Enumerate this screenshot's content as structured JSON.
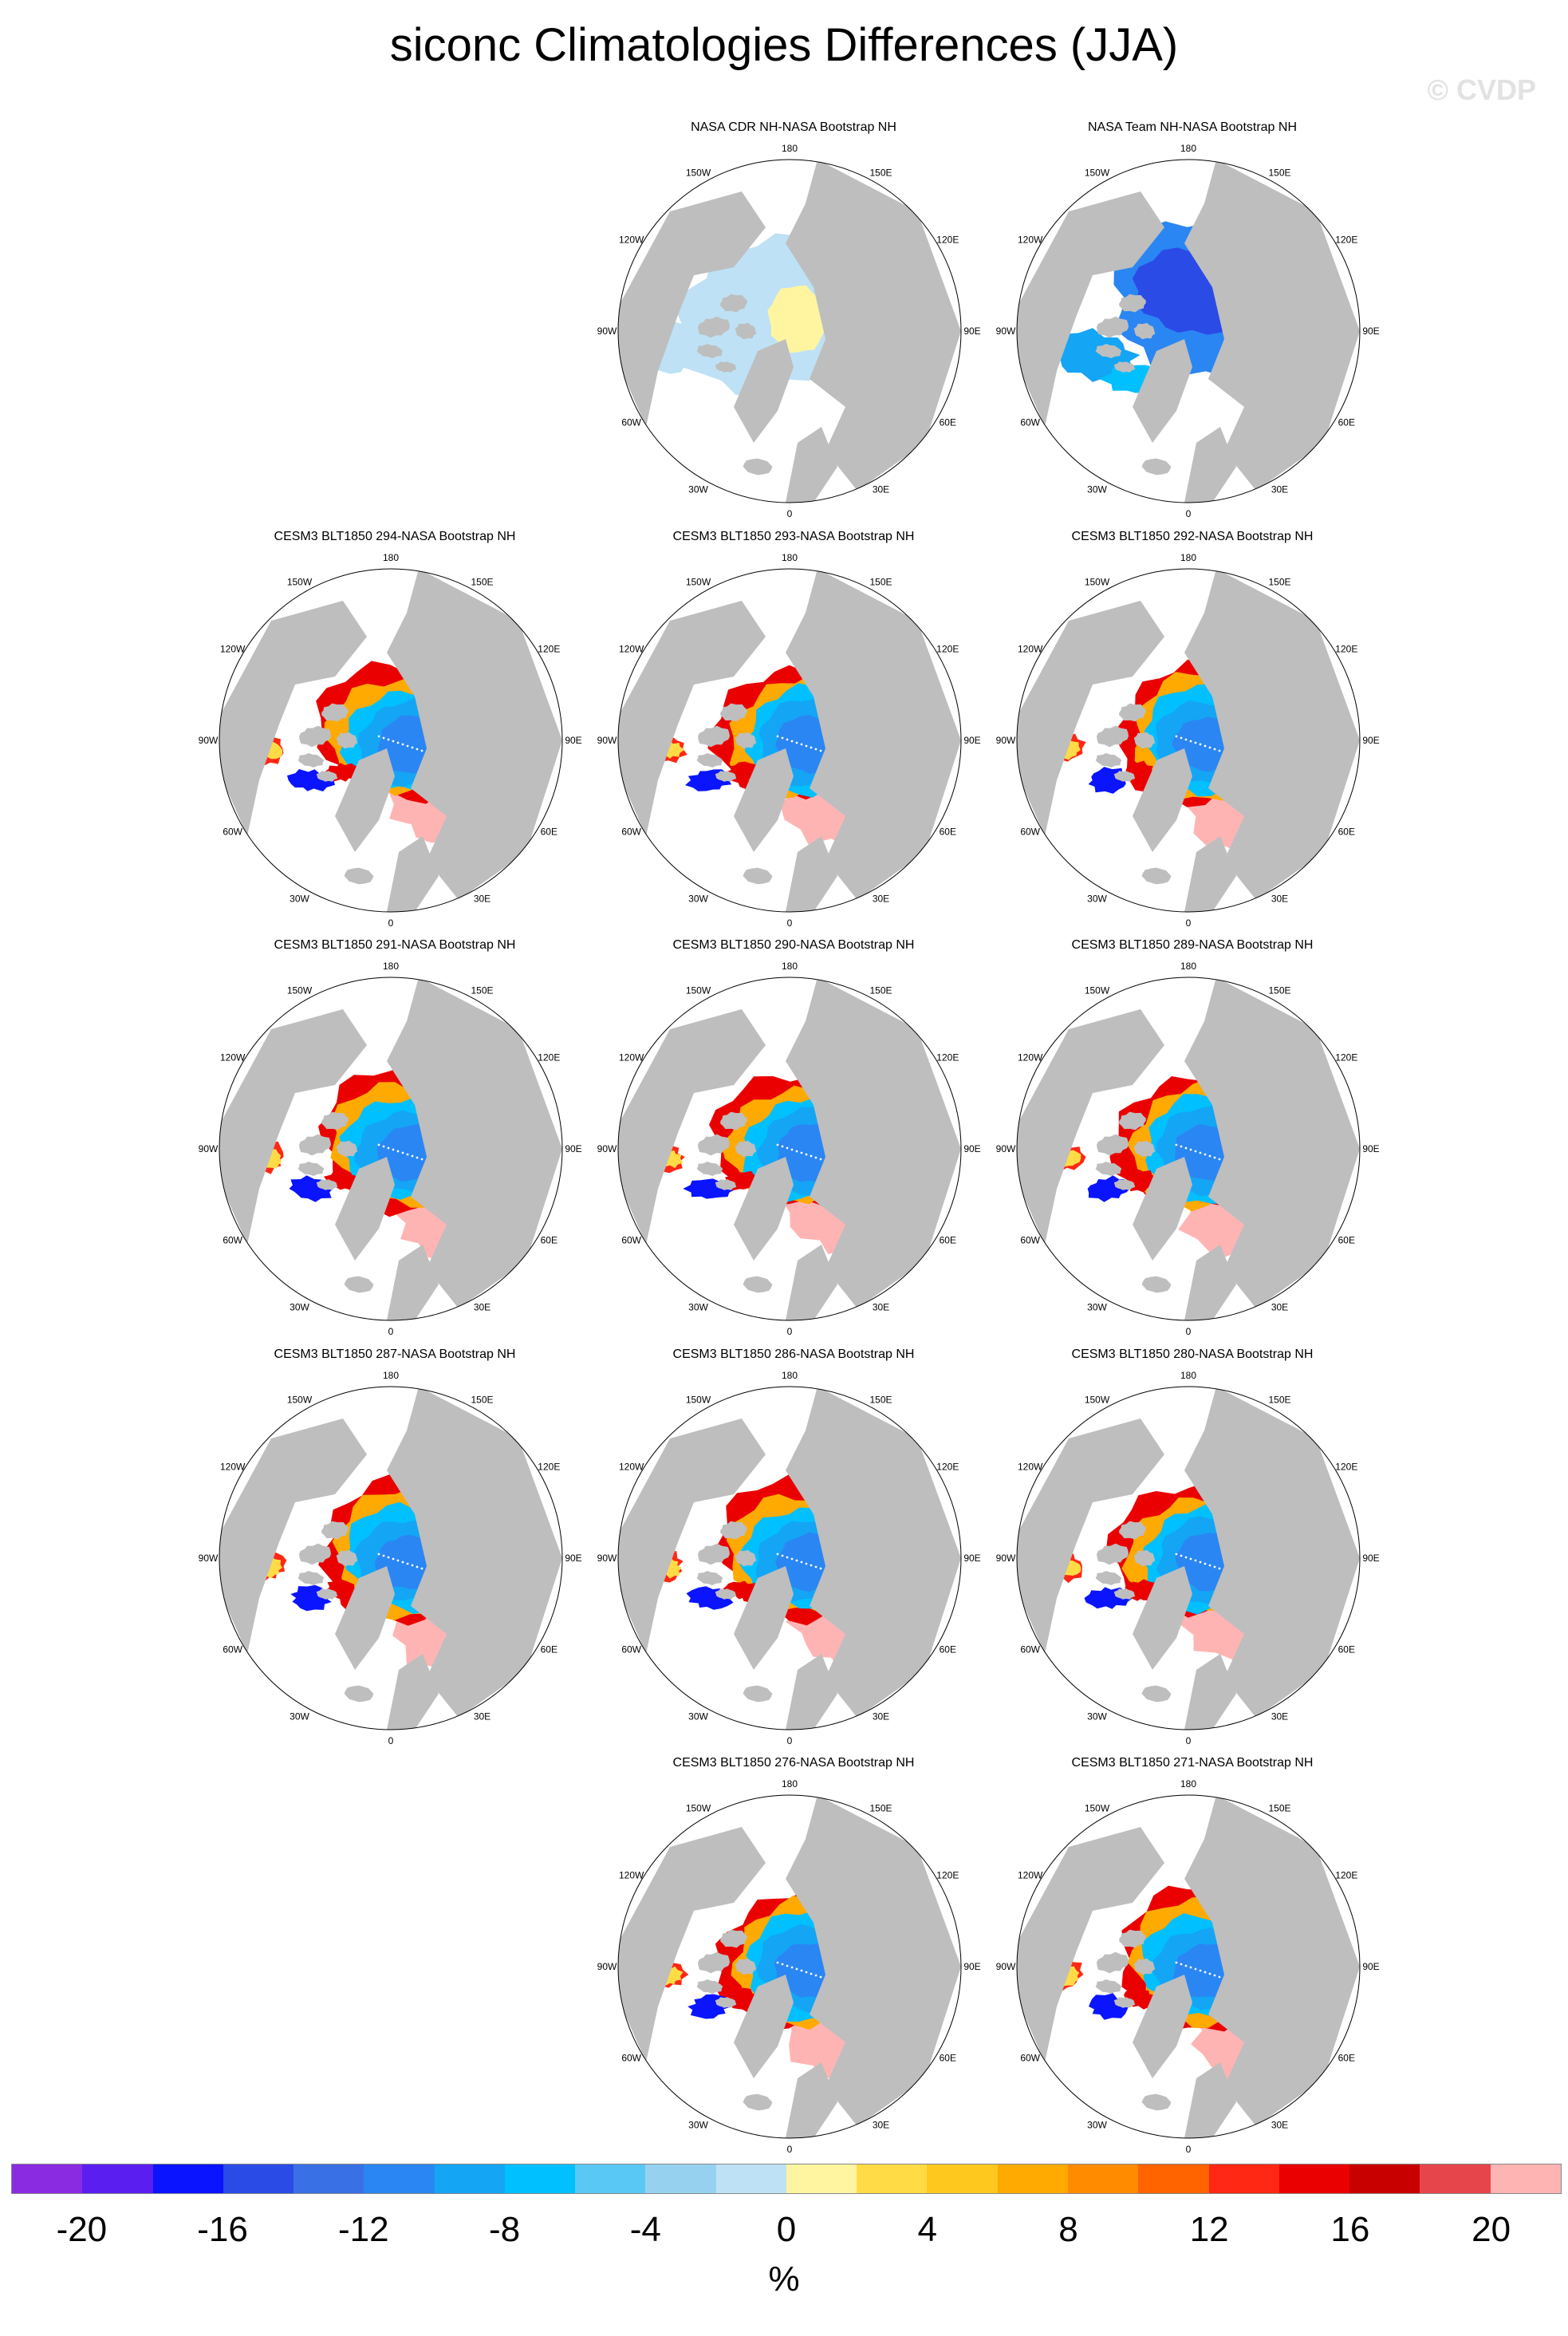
{
  "title": "siconc Climatologies Differences (JJA)",
  "watermark": "© CVDP",
  "lon_labels": [
    "180",
    "150E",
    "120E",
    "90E",
    "60E",
    "30E",
    "0",
    "30W",
    "60W",
    "90W",
    "120W",
    "150W"
  ],
  "panels": [
    {
      "title": "NASA CDR NH-NASA Bootstrap NH",
      "style": "cdr"
    },
    {
      "title": "NASA Team NH-NASA Bootstrap NH",
      "style": "team"
    },
    {
      "title": "CESM3 BLT1850 294-NASA Bootstrap NH",
      "style": "model"
    },
    {
      "title": "CESM3 BLT1850 293-NASA Bootstrap NH",
      "style": "model"
    },
    {
      "title": "CESM3 BLT1850 292-NASA Bootstrap NH",
      "style": "model"
    },
    {
      "title": "CESM3 BLT1850 291-NASA Bootstrap NH",
      "style": "model"
    },
    {
      "title": "CESM3 BLT1850 290-NASA Bootstrap NH",
      "style": "model"
    },
    {
      "title": "CESM3 BLT1850 289-NASA Bootstrap NH",
      "style": "model"
    },
    {
      "title": "CESM3 BLT1850 287-NASA Bootstrap NH",
      "style": "model"
    },
    {
      "title": "CESM3 BLT1850 286-NASA Bootstrap NH",
      "style": "model"
    },
    {
      "title": "CESM3 BLT1850 280-NASA Bootstrap NH",
      "style": "model"
    },
    {
      "title": "CESM3 BLT1850 276-NASA Bootstrap NH",
      "style": "model"
    },
    {
      "title": "CESM3 BLT1850 271-NASA Bootstrap NH",
      "style": "model"
    }
  ],
  "colors": {
    "land": "#bebebe",
    "ocean": "#ffffff",
    "palette": [
      "#8a2be2",
      "#5a1ef0",
      "#0a14ff",
      "#2a4be6",
      "#3a70e6",
      "#2a86f2",
      "#14a5f5",
      "#00c0ff",
      "#5ac8f5",
      "#96d2f0",
      "#bee1f5",
      "#fff5a0",
      "#ffdc46",
      "#ffc81e",
      "#ffaa00",
      "#ff8c00",
      "#ff6400",
      "#ff2814",
      "#eb0000",
      "#c80000",
      "#e6464b",
      "#ffb4b4"
    ]
  },
  "colorbar": {
    "labels": [
      "-20",
      "-16",
      "-12",
      "-8",
      "-4",
      "0",
      "4",
      "8",
      "12",
      "16",
      "20"
    ],
    "unit": "%"
  }
}
